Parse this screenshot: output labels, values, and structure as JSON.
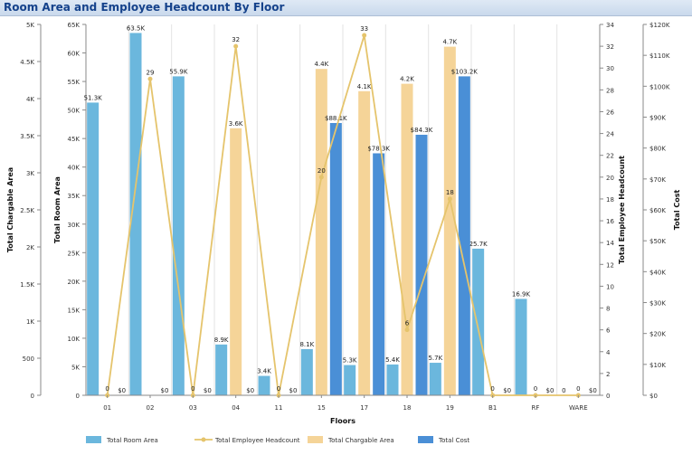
{
  "panel": {
    "title": "Room Area and Employee Headcount By Floor"
  },
  "chart_data": {
    "type": "bar",
    "categories": [
      "01",
      "02",
      "03",
      "04",
      "11",
      "15",
      "17",
      "18",
      "19",
      "B1",
      "RF",
      "WARE"
    ],
    "xlabel": "Floors",
    "series": [
      {
        "name": "Total Room Area",
        "type": "bar",
        "axis": "room",
        "color": "#6bb7dd",
        "values": [
          51300,
          63500,
          55900,
          8900,
          3400,
          8100,
          5300,
          5400,
          5700,
          25700,
          16900,
          0
        ],
        "labels": [
          "51.3K",
          "63.5K",
          "55.9K",
          "8.9K",
          "3.4K",
          "8.1K",
          "5.3K",
          "5.4K",
          "5.7K",
          "25.7K",
          "16.9K",
          "0"
        ]
      },
      {
        "name": "Total Employee Headcount",
        "type": "line",
        "axis": "headcount",
        "color": "#e5c46c",
        "values": [
          0,
          29,
          0,
          32,
          0,
          20,
          33,
          6,
          18,
          0,
          0,
          0
        ],
        "labels": [
          "0",
          "29",
          "0",
          "32",
          "0",
          "20",
          "33",
          "6",
          "18",
          "0",
          "0",
          "0"
        ]
      },
      {
        "name": "Total Chargable Area",
        "type": "bar",
        "axis": "chargable",
        "color": "#f5d498",
        "values": [
          0,
          0,
          0,
          3600,
          0,
          4400,
          4100,
          4200,
          4700,
          0,
          0,
          0
        ],
        "labels": [
          "",
          "",
          "",
          "3.6K",
          "",
          "4.4K",
          "4.1K",
          "4.2K",
          "4.7K",
          "",
          "",
          ""
        ]
      },
      {
        "name": "Total Cost",
        "type": "bar",
        "axis": "cost",
        "color": "#4a8fd6",
        "values": [
          0,
          0,
          0,
          0,
          0,
          88100,
          78300,
          84300,
          103200,
          0,
          0,
          0
        ],
        "labels": [
          "$0",
          "$0",
          "$0",
          "$0",
          "$0",
          "$88.1K",
          "$78.3K",
          "$84.3K",
          "$103.2K",
          "$0",
          "$0",
          "$0"
        ]
      }
    ],
    "axes": {
      "chargable": {
        "label": "Total Chargable Area",
        "min": 0,
        "max": 5000,
        "ticks": [
          0,
          500,
          1000,
          1500,
          2000,
          2500,
          3000,
          3500,
          4000,
          4500,
          5000
        ],
        "tick_labels": [
          "0",
          "500",
          "1K",
          "1.5K",
          "2K",
          "2.5K",
          "3K",
          "3.5K",
          "4K",
          "4.5K",
          "5K"
        ]
      },
      "room": {
        "label": "Total Room Area",
        "min": 0,
        "max": 65000,
        "ticks": [
          0,
          5000,
          10000,
          15000,
          20000,
          25000,
          30000,
          35000,
          40000,
          45000,
          50000,
          55000,
          60000,
          65000
        ],
        "tick_labels": [
          "0",
          "5K",
          "10K",
          "15K",
          "20K",
          "25K",
          "30K",
          "35K",
          "40K",
          "45K",
          "50K",
          "55K",
          "60K",
          "65K"
        ]
      },
      "headcount": {
        "label": "Total Employee Headcount",
        "min": 0,
        "max": 34,
        "ticks": [
          0,
          2,
          4,
          6,
          8,
          10,
          12,
          14,
          16,
          18,
          20,
          22,
          24,
          26,
          28,
          30,
          32,
          34
        ],
        "tick_labels": [
          "0",
          "2",
          "4",
          "6",
          "8",
          "10",
          "12",
          "14",
          "16",
          "18",
          "20",
          "22",
          "24",
          "26",
          "28",
          "30",
          "32",
          "34"
        ]
      },
      "cost": {
        "label": "Total Cost",
        "min": 0,
        "max": 120000,
        "ticks": [
          0,
          10000,
          20000,
          30000,
          40000,
          50000,
          60000,
          70000,
          80000,
          90000,
          100000,
          110000,
          120000
        ],
        "tick_labels": [
          "$0",
          "$10K",
          "$20K",
          "$30K",
          "$40K",
          "$50K",
          "$60K",
          "$70K",
          "$80K",
          "$90K",
          "$100K",
          "$110K",
          "$120K"
        ]
      }
    },
    "grid": "vertical",
    "legend": "bottom-left"
  }
}
